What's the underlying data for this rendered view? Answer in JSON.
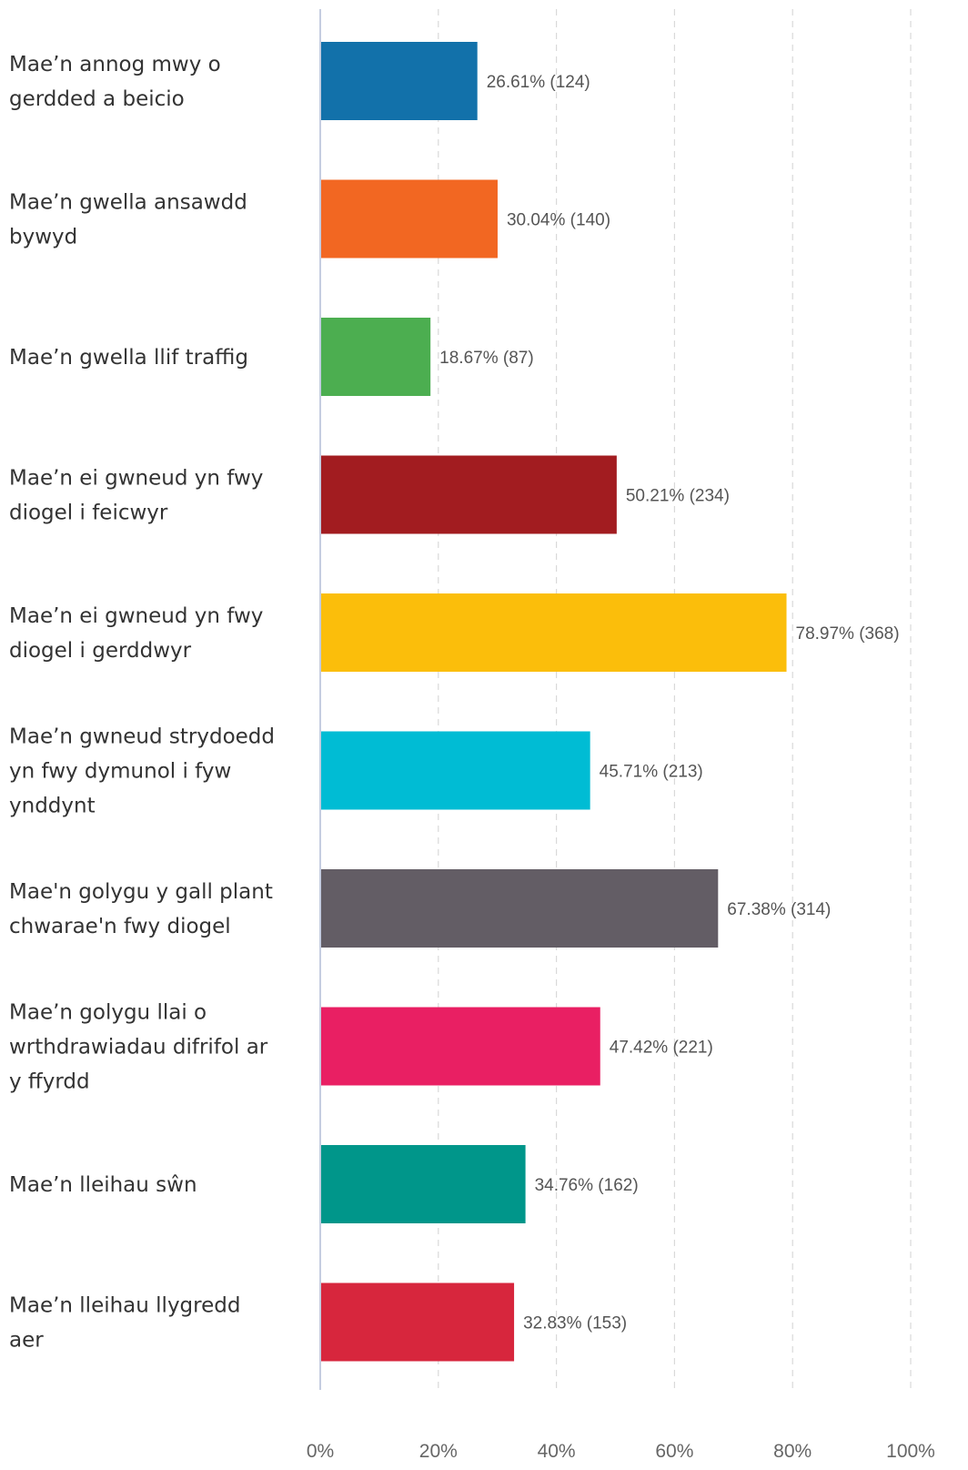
{
  "chart_data": {
    "type": "bar",
    "orientation": "horizontal",
    "categories": [
      [
        "Mae’n annog mwy o",
        "gerdded a beicio"
      ],
      [
        "Mae’n gwella ansawdd",
        "bywyd"
      ],
      [
        "Mae’n gwella llif traffig"
      ],
      [
        "Mae’n ei gwneud yn fwy",
        "diogel i feicwyr"
      ],
      [
        "Mae’n ei gwneud yn fwy",
        "diogel i gerddwyr"
      ],
      [
        "Mae’n gwneud strydoedd",
        "yn fwy dymunol i fyw",
        "ynddynt"
      ],
      [
        "Mae'n golygu y gall plant",
        "chwarae'n fwy diogel"
      ],
      [
        "Mae’n golygu llai o",
        "wrthdrawiadau difrifol ar",
        "y ffyrdd"
      ],
      [
        "Mae’n lleihau sŵn"
      ],
      [
        "Mae’n lleihau llygredd",
        "aer"
      ]
    ],
    "values": [
      26.61,
      30.04,
      18.67,
      50.21,
      78.97,
      45.71,
      67.38,
      47.42,
      34.76,
      32.83
    ],
    "data_labels": [
      "26.61% (124)",
      "30.04% (140)",
      "18.67% (87)",
      "50.21% (234)",
      "78.97% (368)",
      "45.71% (213)",
      "67.38% (314)",
      "47.42% (221)",
      "34.76% (162)",
      "32.83% (153)"
    ],
    "colors": [
      "#1271aa",
      "#f26722",
      "#4cae50",
      "#a21c20",
      "#fbbe0b",
      "#00bcd4",
      "#635d65",
      "#e91f63",
      "#00968a",
      "#d7263d"
    ],
    "x_ticks": [
      "0%",
      "20%",
      "40%",
      "60%",
      "80%",
      "100%"
    ],
    "xlim": [
      0,
      100
    ],
    "grid": true,
    "title": "",
    "xlabel": "",
    "ylabel": ""
  }
}
